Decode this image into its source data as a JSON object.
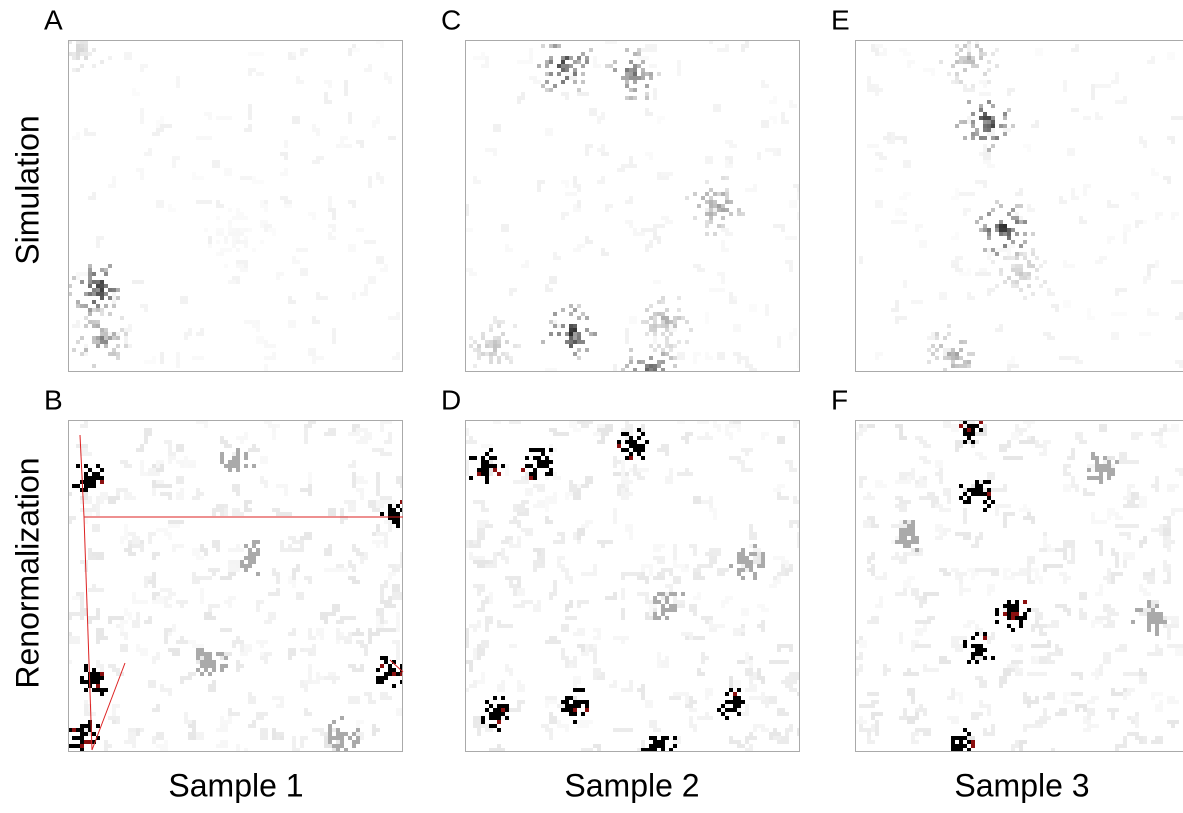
{
  "panels": [
    {
      "letter": "A"
    },
    {
      "letter": "B"
    },
    {
      "letter": "C"
    },
    {
      "letter": "D"
    },
    {
      "letter": "E"
    },
    {
      "letter": "F"
    }
  ],
  "row_labels": [
    "Simulation",
    "Renormalization"
  ],
  "column_labels": [
    "Sample 1",
    "Sample 2",
    "Sample 3"
  ]
}
